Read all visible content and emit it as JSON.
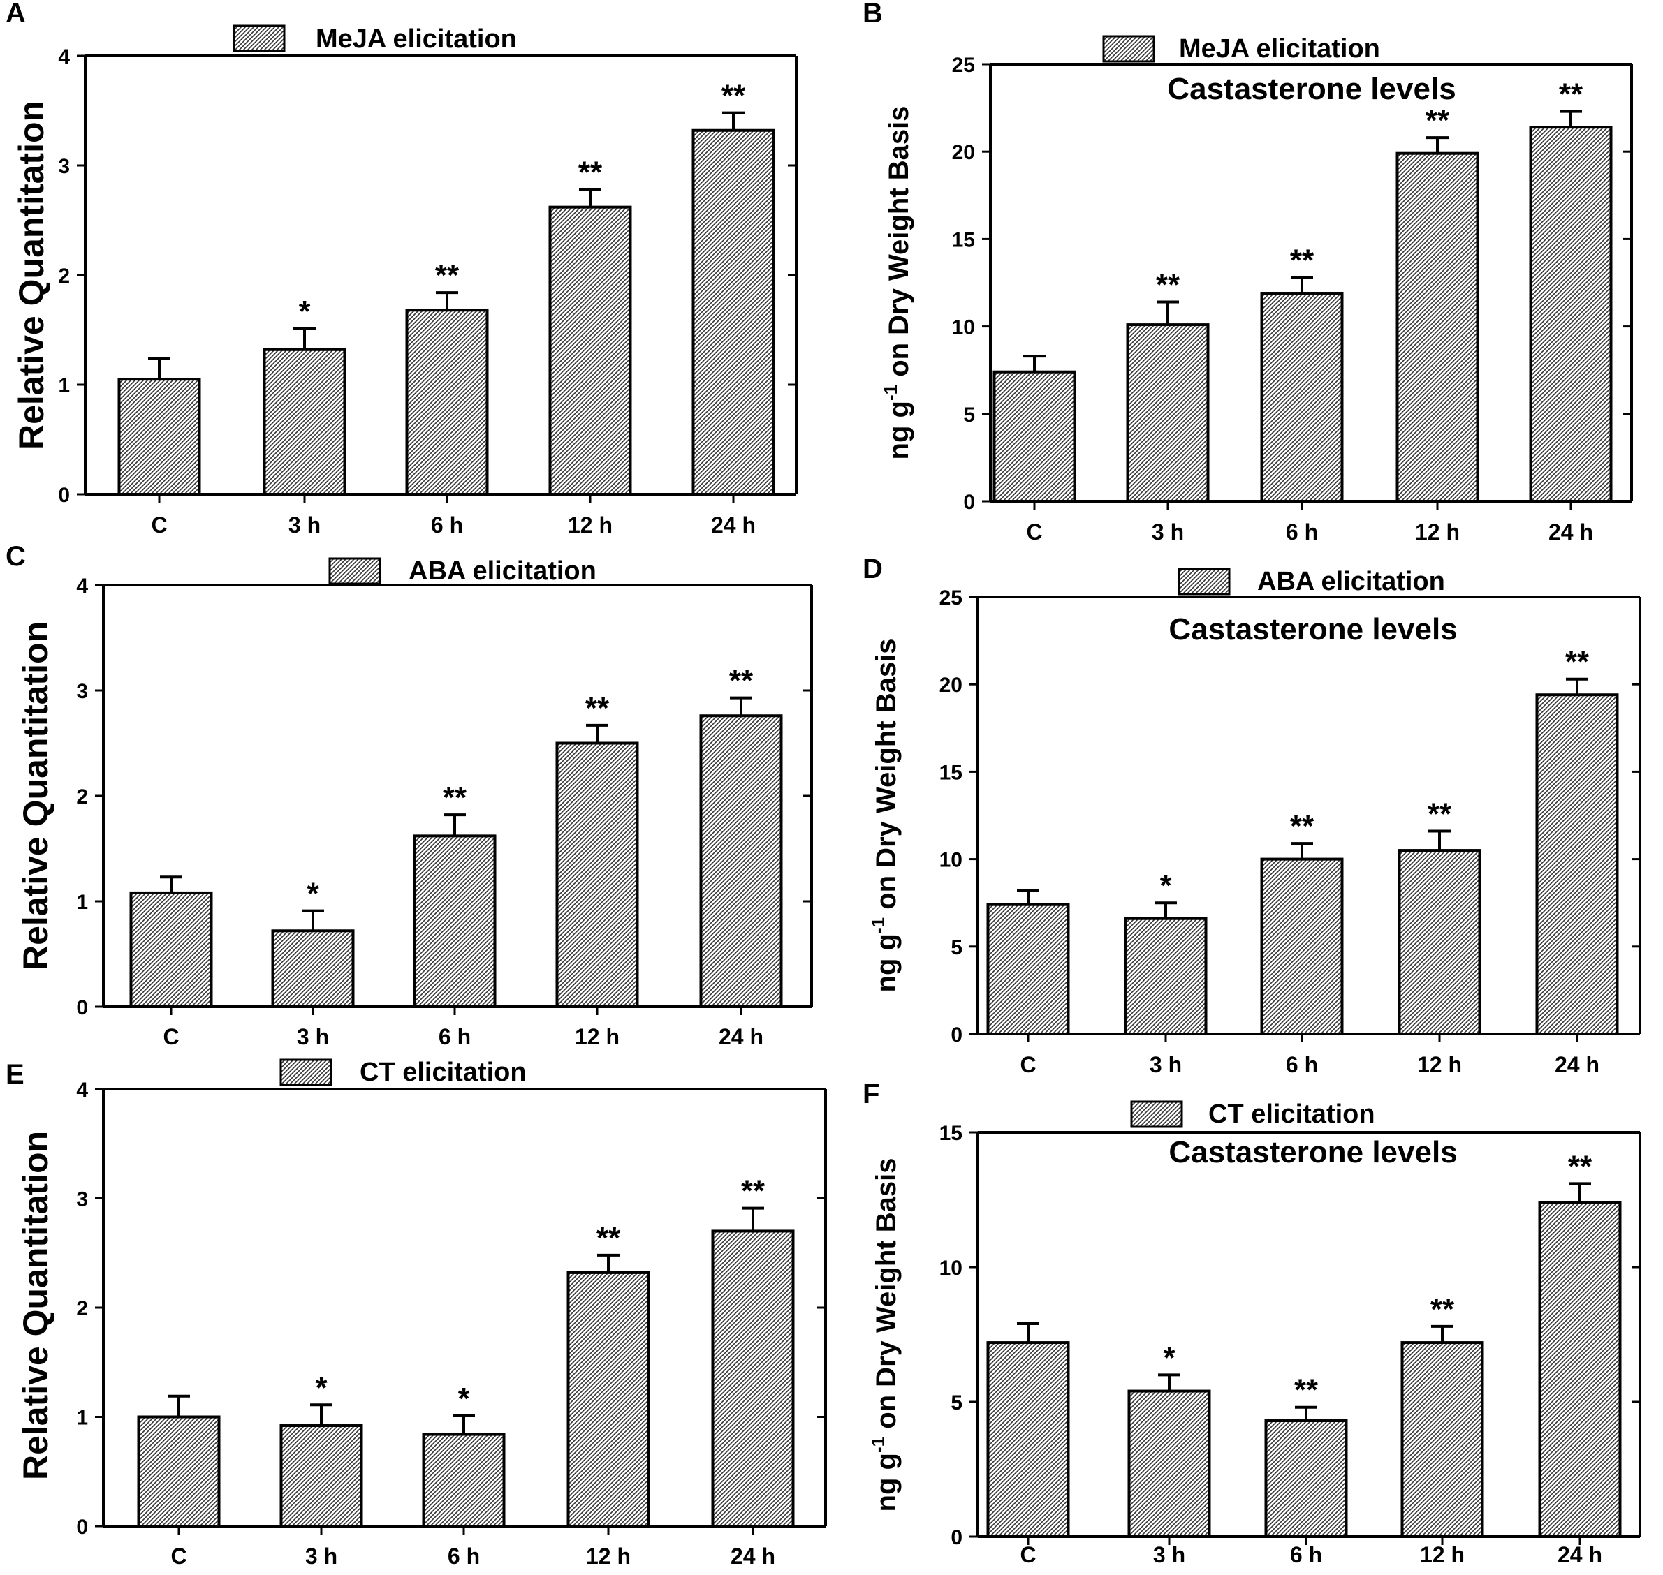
{
  "chart_data": [
    {
      "panel": "A",
      "type": "bar",
      "title": "MeJA elicitation",
      "subtitle": "",
      "xlabel": "",
      "ylabel": "Relative Quantitation",
      "ylabel_sup": "",
      "ylim": [
        0,
        4
      ],
      "yticks": [
        "0",
        "1",
        "2",
        "3",
        "4"
      ],
      "ytick_values": [
        0,
        1,
        2,
        3,
        4
      ],
      "categories": [
        "C",
        "3 h",
        "6 h",
        "12 h",
        "24 h"
      ],
      "series": [
        {
          "name": "MeJA elicitation",
          "values": [
            1.05,
            1.32,
            1.68,
            2.62,
            3.32
          ],
          "errors": [
            0.19,
            0.19,
            0.16,
            0.16,
            0.16
          ],
          "significance": [
            "",
            "*",
            "**",
            "**",
            "**"
          ]
        }
      ]
    },
    {
      "panel": "B",
      "type": "bar",
      "title": "MeJA elicitation",
      "subtitle": "Castasterone levels",
      "xlabel": "",
      "ylabel": "ng g",
      "ylabel_sup": "-1",
      "ylabel_rest": " on Dry Weight Basis",
      "ylim": [
        0,
        25
      ],
      "yticks": [
        "0",
        "5",
        "10",
        "15",
        "20",
        "25"
      ],
      "ytick_values": [
        0,
        5,
        10,
        15,
        20,
        25
      ],
      "categories": [
        "C",
        "3 h",
        "6 h",
        "12 h",
        "24 h"
      ],
      "series": [
        {
          "name": "MeJA elicitation",
          "values": [
            7.4,
            10.1,
            11.9,
            19.9,
            21.4
          ],
          "errors": [
            0.9,
            1.3,
            0.9,
            0.9,
            0.9
          ],
          "significance": [
            "",
            "**",
            "**",
            "**",
            "**"
          ]
        }
      ]
    },
    {
      "panel": "C",
      "type": "bar",
      "title": "ABA elicitation",
      "subtitle": "",
      "xlabel": "",
      "ylabel": "Relative Quantitation",
      "ylabel_sup": "",
      "ylim": [
        0,
        4
      ],
      "yticks": [
        "0",
        "1",
        "2",
        "3",
        "4"
      ],
      "ytick_values": [
        0,
        1,
        2,
        3,
        4
      ],
      "categories": [
        "C",
        "3 h",
        "6 h",
        "12 h",
        "24 h"
      ],
      "series": [
        {
          "name": "ABA elicitation",
          "values": [
            1.08,
            0.72,
            1.62,
            2.5,
            2.76
          ],
          "errors": [
            0.15,
            0.19,
            0.2,
            0.17,
            0.17
          ],
          "significance": [
            "",
            "*",
            "**",
            "**",
            "**"
          ]
        }
      ]
    },
    {
      "panel": "D",
      "type": "bar",
      "title": "ABA elicitation",
      "subtitle": "Castasterone levels",
      "xlabel": "",
      "ylabel": "ng g",
      "ylabel_sup": "-1",
      "ylabel_rest": " on  Dry Weight Basis",
      "ylim": [
        0,
        25
      ],
      "yticks": [
        "0",
        "5",
        "10",
        "15",
        "20",
        "25"
      ],
      "ytick_values": [
        0,
        5,
        10,
        15,
        20,
        25
      ],
      "categories": [
        "C",
        "3 h",
        "6 h",
        "12 h",
        "24 h"
      ],
      "series": [
        {
          "name": "ABA elicitation",
          "values": [
            7.4,
            6.6,
            10.0,
            10.5,
            19.4
          ],
          "errors": [
            0.8,
            0.9,
            0.9,
            1.1,
            0.9
          ],
          "significance": [
            "",
            "*",
            "**",
            "**",
            "**"
          ]
        }
      ]
    },
    {
      "panel": "E",
      "type": "bar",
      "title": "CT  elicitation",
      "subtitle": "",
      "xlabel": "",
      "ylabel": "Relative Quantitation",
      "ylabel_sup": "",
      "ylim": [
        0,
        4
      ],
      "yticks": [
        "0",
        "1",
        "2",
        "3",
        "4"
      ],
      "ytick_values": [
        0,
        1,
        2,
        3,
        4
      ],
      "categories": [
        "C",
        "3 h",
        "6 h",
        "12 h",
        "24 h"
      ],
      "series": [
        {
          "name": "CT elicitation",
          "values": [
            1.0,
            0.92,
            0.84,
            2.32,
            2.7
          ],
          "errors": [
            0.19,
            0.19,
            0.17,
            0.16,
            0.21
          ],
          "significance": [
            "",
            "*",
            "*",
            "**",
            "**"
          ]
        }
      ]
    },
    {
      "panel": "F",
      "type": "bar",
      "title": "CT  elicitation",
      "subtitle": "Castasterone levels",
      "xlabel": "",
      "ylabel": "ng g",
      "ylabel_sup": "-1",
      "ylabel_rest": " on  Dry Weight Basis",
      "ylim": [
        0,
        15
      ],
      "yticks": [
        "0",
        "5",
        "10",
        "15"
      ],
      "ytick_values": [
        0,
        5,
        10,
        15
      ],
      "categories": [
        "C",
        "3 h",
        "6 h",
        "12 h",
        "24 h"
      ],
      "series": [
        {
          "name": "CT elicitation",
          "values": [
            7.2,
            5.4,
            4.3,
            7.2,
            12.4
          ],
          "errors": [
            0.7,
            0.6,
            0.5,
            0.6,
            0.7
          ],
          "significance": [
            "",
            "*",
            "**",
            "**",
            "**"
          ]
        }
      ]
    }
  ]
}
